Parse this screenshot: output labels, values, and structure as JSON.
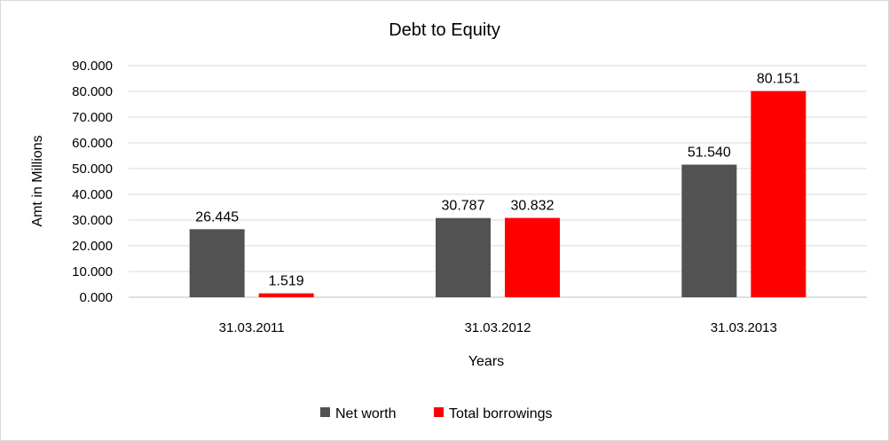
{
  "chart_data": {
    "type": "bar",
    "title": "Debt to Equity",
    "xlabel": "Years",
    "ylabel": "Amt in Millions",
    "categories": [
      "31.03.2011",
      "31.03.2012",
      "31.03.2013"
    ],
    "series": [
      {
        "name": "Net worth",
        "values": [
          26.445,
          30.787,
          51.54
        ],
        "labels": [
          "26.445",
          "30.787",
          "51.540"
        ],
        "color": "#525252"
      },
      {
        "name": "Total borrowings",
        "values": [
          1.519,
          30.832,
          80.151
        ],
        "labels": [
          "1.519",
          "30.832",
          "80.151"
        ],
        "color": "#ff0000"
      }
    ],
    "ylim": [
      0,
      90
    ],
    "yticks": [
      0,
      10,
      20,
      30,
      40,
      50,
      60,
      70,
      80,
      90
    ],
    "ytick_labels": [
      "0.000",
      "10.000",
      "20.000",
      "30.000",
      "40.000",
      "50.000",
      "60.000",
      "70.000",
      "80.000",
      "90.000"
    ],
    "grid": true,
    "legend": "bottom"
  }
}
